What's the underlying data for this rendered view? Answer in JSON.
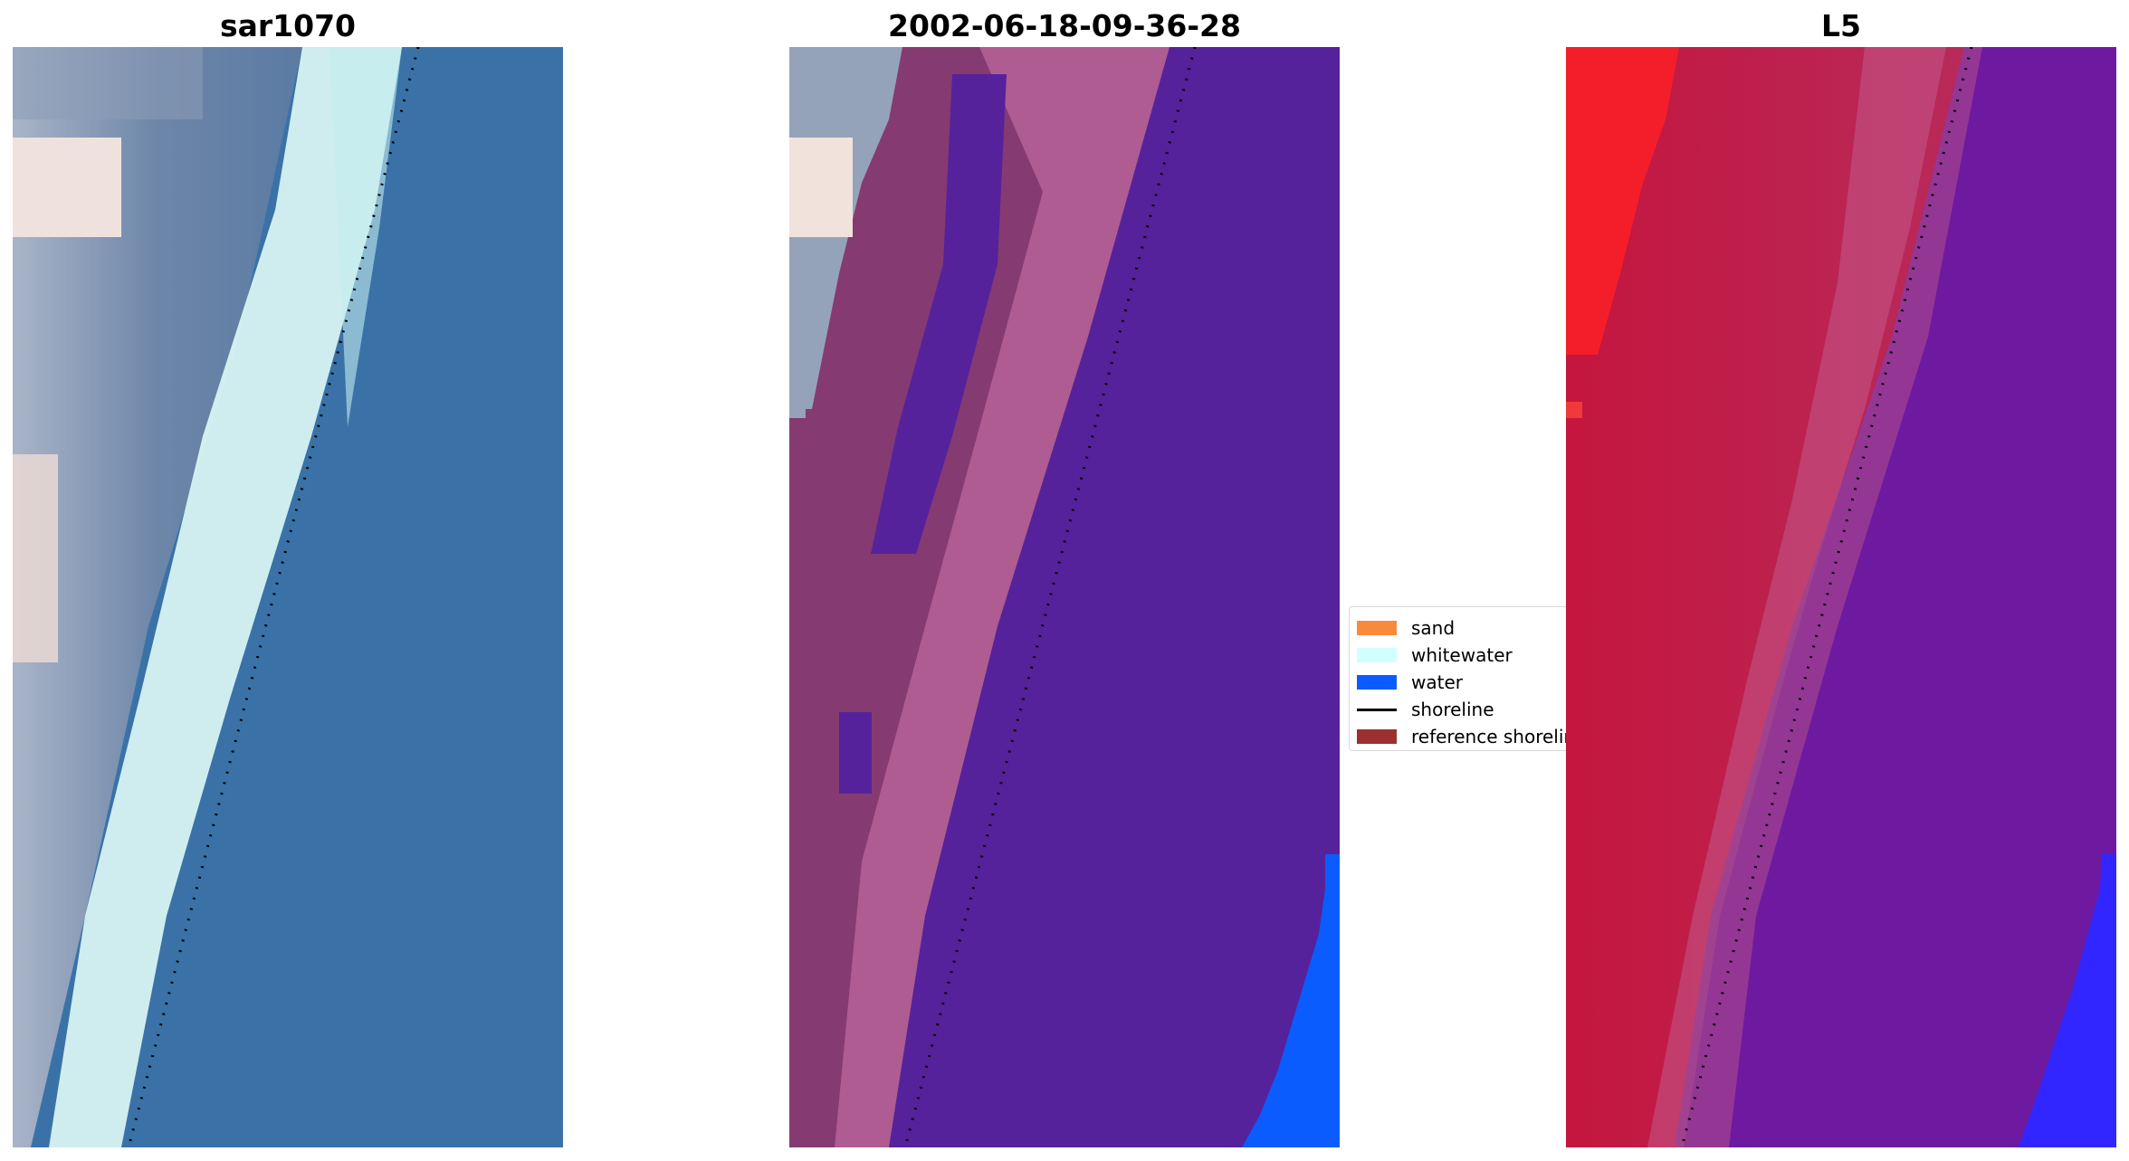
{
  "panels": [
    {
      "title": "sar1070"
    },
    {
      "title": "2002-06-18-09-36-28"
    },
    {
      "title": "L5"
    }
  ],
  "legend": {
    "items": [
      {
        "label": "sand",
        "color": "#f98a3c",
        "kind": "patch"
      },
      {
        "label": "whitewater",
        "color": "#d1ffff",
        "kind": "patch"
      },
      {
        "label": "water",
        "color": "#0a5cff",
        "kind": "patch"
      },
      {
        "label": "shoreline",
        "color": "#000000",
        "kind": "line"
      },
      {
        "label": "reference shoreline",
        "color": "#9c3030",
        "kind": "patch"
      }
    ]
  },
  "colors": {
    "rgb_water": "#3671a6",
    "rgb_whitewater": "#d8f6f4",
    "rgb_land": "#7f97b3",
    "class_water_label": "#56229b",
    "class_land_mauve": "#8a3d76",
    "class_pink": "#b3608f",
    "index_red": "#c0183f",
    "index_purple": "#6d1a9e",
    "index_blue": "#2a22ff"
  }
}
